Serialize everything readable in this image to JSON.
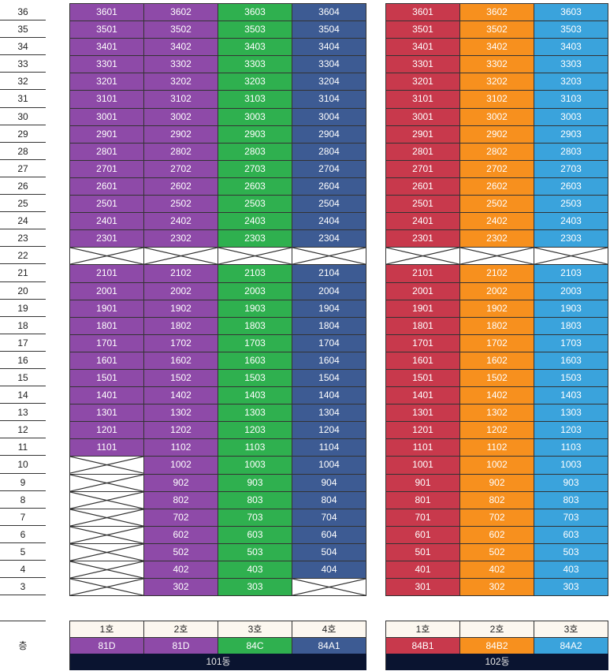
{
  "floor_header_label": "층",
  "floors": [
    "36",
    "35",
    "34",
    "33",
    "32",
    "31",
    "30",
    "29",
    "28",
    "27",
    "26",
    "25",
    "24",
    "23",
    "22",
    "21",
    "20",
    "19",
    "18",
    "17",
    "16",
    "15",
    "14",
    "13",
    "12",
    "11",
    "10",
    "9",
    "8",
    "7",
    "6",
    "5",
    "4",
    "3"
  ],
  "buildings": [
    {
      "name": "101동",
      "units": [
        {
          "label": "1호",
          "type": "81D",
          "color": "#8e4aa8"
        },
        {
          "label": "2호",
          "type": "81D",
          "color": "#8e4aa8"
        },
        {
          "label": "3호",
          "type": "84C",
          "color": "#2fb04f"
        },
        {
          "label": "4호",
          "type": "84A1",
          "color": "#3d5b93"
        }
      ]
    },
    {
      "name": "102동",
      "units": [
        {
          "label": "1호",
          "type": "84B1",
          "color": "#c8394c"
        },
        {
          "label": "2호",
          "type": "84B2",
          "color": "#f7901e"
        },
        {
          "label": "3호",
          "type": "84A2",
          "color": "#3aa3dc"
        }
      ]
    }
  ],
  "empty_cells": {
    "101동": {
      "22": [
        0,
        1,
        2,
        3
      ],
      "10": [
        0
      ],
      "9": [
        0
      ],
      "8": [
        0
      ],
      "7": [
        0
      ],
      "6": [
        0
      ],
      "5": [
        0
      ],
      "4": [
        0
      ],
      "3": [
        0,
        3
      ]
    },
    "102동": {
      "22": [
        0,
        1,
        2
      ]
    }
  }
}
